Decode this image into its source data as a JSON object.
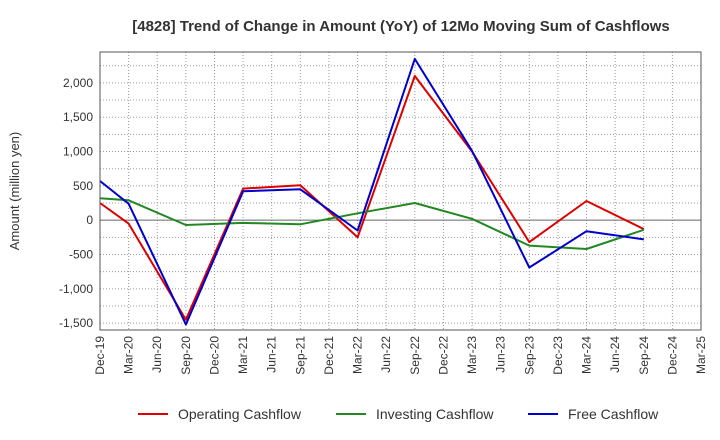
{
  "chart_data": {
    "type": "line",
    "title": "[4828]  Trend of Change in Amount (YoY) of 12Mo Moving Sum of Cashflows",
    "xlabel": "",
    "ylabel": "Amount (million yen)",
    "ylim": [
      -1600,
      2450
    ],
    "yticks": [
      -1500,
      -1000,
      -500,
      0,
      500,
      1000,
      1500,
      2000
    ],
    "ytick_labels": [
      "-1,500",
      "-1,000",
      "-500",
      "0",
      "500",
      "1,000",
      "1,500",
      "2,000"
    ],
    "categories": [
      "Dec-19",
      "Mar-20",
      "Jun-20",
      "Sep-20",
      "Dec-20",
      "Mar-21",
      "Jun-21",
      "Sep-21",
      "Dec-21",
      "Mar-22",
      "Jun-22",
      "Sep-22",
      "Dec-22",
      "Mar-23",
      "Jun-23",
      "Sep-23",
      "Dec-23",
      "Mar-24",
      "Jun-24",
      "Sep-24",
      "Dec-24",
      "Mar-25"
    ],
    "grid": true,
    "legend_position": "bottom",
    "series": [
      {
        "name": "Operating Cashflow",
        "color": "#dd0000",
        "values": [
          250,
          -50,
          null,
          -1450,
          null,
          460,
          null,
          510,
          null,
          -250,
          null,
          2100,
          null,
          1000,
          null,
          -320,
          null,
          280,
          null,
          -130,
          null,
          null
        ]
      },
      {
        "name": "Investing Cashflow",
        "color": "#228822",
        "values": [
          320,
          290,
          null,
          -70,
          null,
          -40,
          null,
          -60,
          null,
          100,
          null,
          250,
          null,
          20,
          null,
          -370,
          null,
          -420,
          null,
          -140,
          null,
          null
        ]
      },
      {
        "name": "Free Cashflow",
        "color": "#0000cc",
        "values": [
          570,
          240,
          null,
          -1520,
          null,
          420,
          null,
          450,
          null,
          -150,
          null,
          2350,
          null,
          1010,
          null,
          -690,
          null,
          -160,
          null,
          -280,
          null,
          null
        ]
      }
    ]
  }
}
